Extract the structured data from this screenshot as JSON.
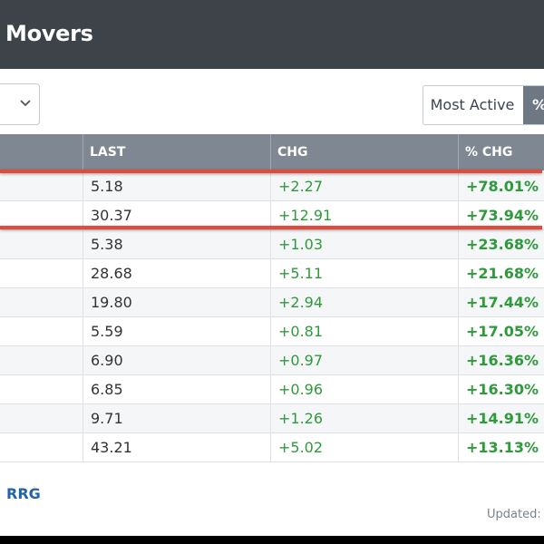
{
  "header": {
    "title": "Movers"
  },
  "controls": {
    "toggle": {
      "most_active_label": "Most Active",
      "percent_label": "%"
    }
  },
  "table": {
    "columns": [
      "LAST",
      "CHG",
      "% CHG"
    ],
    "rows": [
      {
        "last": "5.18",
        "chg": "+2.27",
        "pct": "+78.01%"
      },
      {
        "last": "30.37",
        "chg": "+12.91",
        "pct": "+73.94%"
      },
      {
        "last": "5.38",
        "chg": "+1.03",
        "pct": "+23.68%"
      },
      {
        "last": "28.68",
        "chg": "+5.11",
        "pct": "+21.68%"
      },
      {
        "last": "19.80",
        "chg": "+2.94",
        "pct": "+17.44%"
      },
      {
        "last": "5.59",
        "chg": "+0.81",
        "pct": "+17.05%"
      },
      {
        "last": "6.90",
        "chg": "+0.97",
        "pct": "+16.36%"
      },
      {
        "last": "6.85",
        "chg": "+0.96",
        "pct": "+16.30%"
      },
      {
        "last": "9.71",
        "chg": "+1.26",
        "pct": "+14.91%"
      },
      {
        "last": "43.21",
        "chg": "+5.02",
        "pct": "+13.13%"
      }
    ]
  },
  "footer": {
    "rrg_link": "RRG",
    "updated_label": "Updated: ("
  },
  "colors": {
    "header_bg": "#3e434a",
    "table_header_bg": "#7f8892",
    "positive": "#2f9a3b",
    "highlight": "#e34a3a",
    "link": "#2364a8"
  }
}
